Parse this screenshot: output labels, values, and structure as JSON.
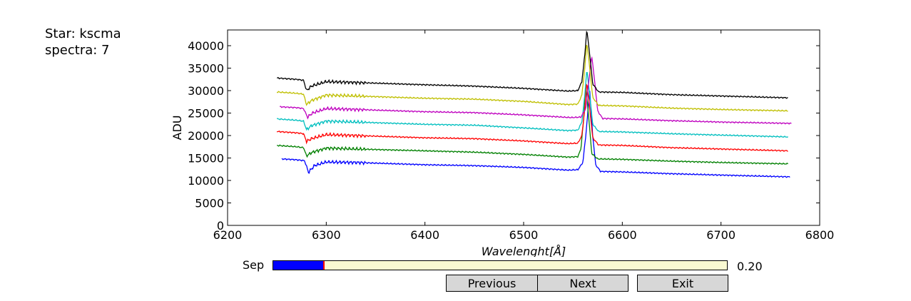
{
  "info": {
    "star": "Star: kscma",
    "spectra": "spectra: 7"
  },
  "chart_data": {
    "type": "line",
    "xlabel": "Wavelenght[Å]",
    "ylabel": "ADU",
    "xlim": [
      6200,
      6800
    ],
    "ylim": [
      0,
      43500
    ],
    "xticks": [
      6200,
      6300,
      6400,
      6500,
      6600,
      6700,
      6800
    ],
    "yticks": [
      0,
      5000,
      10000,
      15000,
      20000,
      25000,
      30000,
      35000,
      40000
    ],
    "grid": false,
    "series": [
      {
        "color": "#0000ff",
        "start": 6255,
        "end": 6770,
        "points": [
          [
            6255,
            14800
          ],
          [
            6270,
            14600
          ],
          [
            6278,
            14400
          ],
          [
            6282,
            11800
          ],
          [
            6288,
            13300
          ],
          [
            6300,
            14100
          ],
          [
            6330,
            14000
          ],
          [
            6400,
            13500
          ],
          [
            6450,
            13300
          ],
          [
            6500,
            12900
          ],
          [
            6545,
            12300
          ],
          [
            6555,
            12400
          ],
          [
            6560,
            14000
          ],
          [
            6563,
            20000
          ],
          [
            6567,
            30000
          ],
          [
            6570,
            20000
          ],
          [
            6573,
            13500
          ],
          [
            6578,
            12000
          ],
          [
            6600,
            11900
          ],
          [
            6650,
            11500
          ],
          [
            6700,
            11200
          ],
          [
            6770,
            10800
          ]
        ]
      },
      {
        "color": "#008000",
        "start": 6250,
        "end": 6768,
        "points": [
          [
            6250,
            17800
          ],
          [
            6270,
            17500
          ],
          [
            6277,
            17300
          ],
          [
            6280,
            15500
          ],
          [
            6285,
            16200
          ],
          [
            6300,
            17200
          ],
          [
            6330,
            17000
          ],
          [
            6400,
            16600
          ],
          [
            6450,
            16300
          ],
          [
            6500,
            15800
          ],
          [
            6545,
            15200
          ],
          [
            6555,
            15300
          ],
          [
            6558,
            17000
          ],
          [
            6561,
            24000
          ],
          [
            6563,
            31000
          ],
          [
            6566,
            24000
          ],
          [
            6569,
            16000
          ],
          [
            6575,
            14800
          ],
          [
            6600,
            14700
          ],
          [
            6650,
            14300
          ],
          [
            6700,
            14000
          ],
          [
            6768,
            13700
          ]
        ]
      },
      {
        "color": "#ff0000",
        "start": 6250,
        "end": 6768,
        "points": [
          [
            6250,
            20900
          ],
          [
            6270,
            20600
          ],
          [
            6277,
            20400
          ],
          [
            6280,
            18700
          ],
          [
            6285,
            19300
          ],
          [
            6300,
            20200
          ],
          [
            6330,
            20000
          ],
          [
            6400,
            19500
          ],
          [
            6450,
            19300
          ],
          [
            6500,
            18800
          ],
          [
            6545,
            18200
          ],
          [
            6555,
            18300
          ],
          [
            6559,
            20000
          ],
          [
            6562,
            26000
          ],
          [
            6564,
            32000
          ],
          [
            6567,
            26000
          ],
          [
            6570,
            19500
          ],
          [
            6576,
            17900
          ],
          [
            6600,
            17800
          ],
          [
            6650,
            17300
          ],
          [
            6700,
            17000
          ],
          [
            6768,
            16600
          ]
        ]
      },
      {
        "color": "#00bfbf",
        "start": 6250,
        "end": 6768,
        "points": [
          [
            6250,
            23700
          ],
          [
            6270,
            23400
          ],
          [
            6277,
            23200
          ],
          [
            6280,
            21300
          ],
          [
            6285,
            22200
          ],
          [
            6300,
            23200
          ],
          [
            6330,
            23000
          ],
          [
            6400,
            22500
          ],
          [
            6450,
            22300
          ],
          [
            6500,
            21700
          ],
          [
            6545,
            21100
          ],
          [
            6555,
            21200
          ],
          [
            6559,
            23000
          ],
          [
            6562,
            29000
          ],
          [
            6564,
            34700
          ],
          [
            6567,
            29000
          ],
          [
            6570,
            22500
          ],
          [
            6576,
            20900
          ],
          [
            6600,
            20800
          ],
          [
            6650,
            20400
          ],
          [
            6700,
            20100
          ],
          [
            6768,
            19700
          ]
        ]
      },
      {
        "color": "#bf00bf",
        "start": 6253,
        "end": 6772,
        "points": [
          [
            6253,
            26400
          ],
          [
            6270,
            26200
          ],
          [
            6277,
            26000
          ],
          [
            6281,
            24100
          ],
          [
            6286,
            25000
          ],
          [
            6300,
            26000
          ],
          [
            6330,
            25800
          ],
          [
            6400,
            25300
          ],
          [
            6450,
            25100
          ],
          [
            6500,
            24600
          ],
          [
            6548,
            24000
          ],
          [
            6558,
            24100
          ],
          [
            6563,
            26000
          ],
          [
            6566,
            32000
          ],
          [
            6569,
            37800
          ],
          [
            6572,
            32000
          ],
          [
            6575,
            25500
          ],
          [
            6580,
            23800
          ],
          [
            6600,
            23700
          ],
          [
            6650,
            23300
          ],
          [
            6700,
            23000
          ],
          [
            6772,
            22700
          ]
        ]
      },
      {
        "color": "#bfbf00",
        "start": 6250,
        "end": 6768,
        "points": [
          [
            6250,
            29700
          ],
          [
            6270,
            29400
          ],
          [
            6277,
            29200
          ],
          [
            6280,
            26900
          ],
          [
            6285,
            27800
          ],
          [
            6300,
            29000
          ],
          [
            6330,
            28800
          ],
          [
            6400,
            28300
          ],
          [
            6450,
            28100
          ],
          [
            6500,
            27600
          ],
          [
            6545,
            26900
          ],
          [
            6555,
            27000
          ],
          [
            6559,
            29000
          ],
          [
            6562,
            35000
          ],
          [
            6564,
            40700
          ],
          [
            6567,
            35000
          ],
          [
            6570,
            28500
          ],
          [
            6576,
            26700
          ],
          [
            6600,
            26600
          ],
          [
            6650,
            26100
          ],
          [
            6700,
            25800
          ],
          [
            6768,
            25500
          ]
        ]
      },
      {
        "color": "#000000",
        "start": 6250,
        "end": 6768,
        "points": [
          [
            6250,
            32800
          ],
          [
            6270,
            32500
          ],
          [
            6277,
            32300
          ],
          [
            6280,
            30000
          ],
          [
            6285,
            31000
          ],
          [
            6300,
            32000
          ],
          [
            6330,
            31800
          ],
          [
            6400,
            31300
          ],
          [
            6450,
            31000
          ],
          [
            6500,
            30500
          ],
          [
            6545,
            29900
          ],
          [
            6555,
            30000
          ],
          [
            6559,
            32000
          ],
          [
            6562,
            38000
          ],
          [
            6564,
            43600
          ],
          [
            6567,
            38000
          ],
          [
            6570,
            31500
          ],
          [
            6576,
            29700
          ],
          [
            6600,
            29600
          ],
          [
            6650,
            29100
          ],
          [
            6700,
            28800
          ],
          [
            6768,
            28400
          ]
        ]
      }
    ]
  },
  "controls": {
    "slider_label": "Sep",
    "slider_value_text": "0.20",
    "slider_fraction": 0.11,
    "buttons": {
      "previous": "Previous",
      "next": "Next",
      "exit": "Exit"
    }
  }
}
